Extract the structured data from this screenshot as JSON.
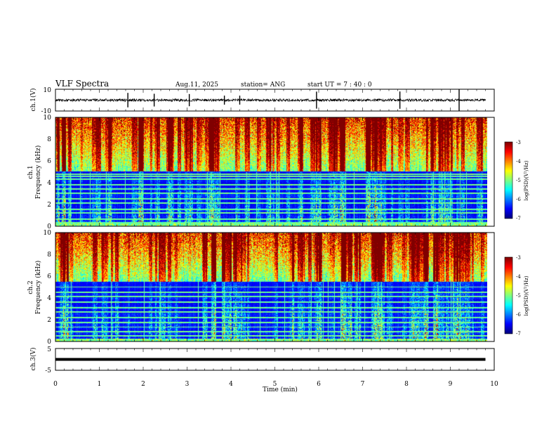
{
  "header": {
    "title": "VLF Spectra",
    "date": "Aug.11, 2025",
    "station": "station= ANG",
    "start": "start  UT =   7 : 40 : 0"
  },
  "chart_data": [
    {
      "type": "line",
      "name": "ch1-waveform",
      "ylabel": "ch.1(V)",
      "ylim": [
        -10,
        10
      ],
      "yticks": [
        "10",
        "-10"
      ],
      "x_range_min": [
        0,
        9.8
      ],
      "baseline_volts": 0,
      "noise_amplitude_volts": 1.2,
      "spikes_min": [
        1.65,
        2.25,
        3.05,
        3.85,
        4.2,
        5.95,
        7.85,
        9.2
      ]
    },
    {
      "type": "heatmap",
      "name": "ch1-spectrogram",
      "ylabel": "ch.1",
      "ylabel2": "Frequency (kHz)",
      "ylim": [
        0,
        10
      ],
      "yticks": [
        "0",
        "2",
        "4",
        "6",
        "8",
        "10"
      ],
      "x_range_min": [
        0,
        9.8
      ],
      "colorbar": {
        "min": -7,
        "max": -3,
        "ticks": [
          "-3",
          "-4",
          "-5",
          "-6",
          "-7"
        ],
        "label": "log(PSD)(V²/Hz)"
      },
      "bright_above_khz": 5.0,
      "lines_khz": [
        0.3,
        0.6,
        1.2,
        1.5,
        2.1,
        2.5,
        3.0,
        3.4,
        3.8,
        4.3,
        4.6,
        4.8
      ]
    },
    {
      "type": "heatmap",
      "name": "ch2-spectrogram",
      "ylabel": "ch.2",
      "ylabel2": "Frequency (kHz)",
      "ylim": [
        0,
        10
      ],
      "yticks": [
        "0",
        "2",
        "4",
        "6",
        "8",
        "10"
      ],
      "x_range_min": [
        0,
        9.8
      ],
      "colorbar": {
        "min": -7,
        "max": -3,
        "ticks": [
          "-3",
          "-4",
          "-5",
          "-6",
          "-7"
        ],
        "label": "log(PSD)(V²/Hz)"
      },
      "bright_above_khz": 5.5,
      "lines_khz": [
        0.5,
        0.9,
        1.3,
        1.7,
        2.2,
        2.7,
        3.1,
        3.6,
        4.1,
        4.5,
        5.0
      ]
    },
    {
      "type": "line",
      "name": "ch3-waveform",
      "ylabel": "ch.3(V)",
      "ylim": [
        -5,
        5
      ],
      "yticks": [
        "5",
        "-5"
      ],
      "x_range_min": [
        0,
        9.8
      ],
      "baseline_volts": 0,
      "xlabel": "Time  (min)",
      "xlim": [
        0,
        10
      ],
      "xticks": [
        "0",
        "1",
        "2",
        "3",
        "4",
        "5",
        "6",
        "7",
        "8",
        "9",
        "10"
      ]
    }
  ]
}
